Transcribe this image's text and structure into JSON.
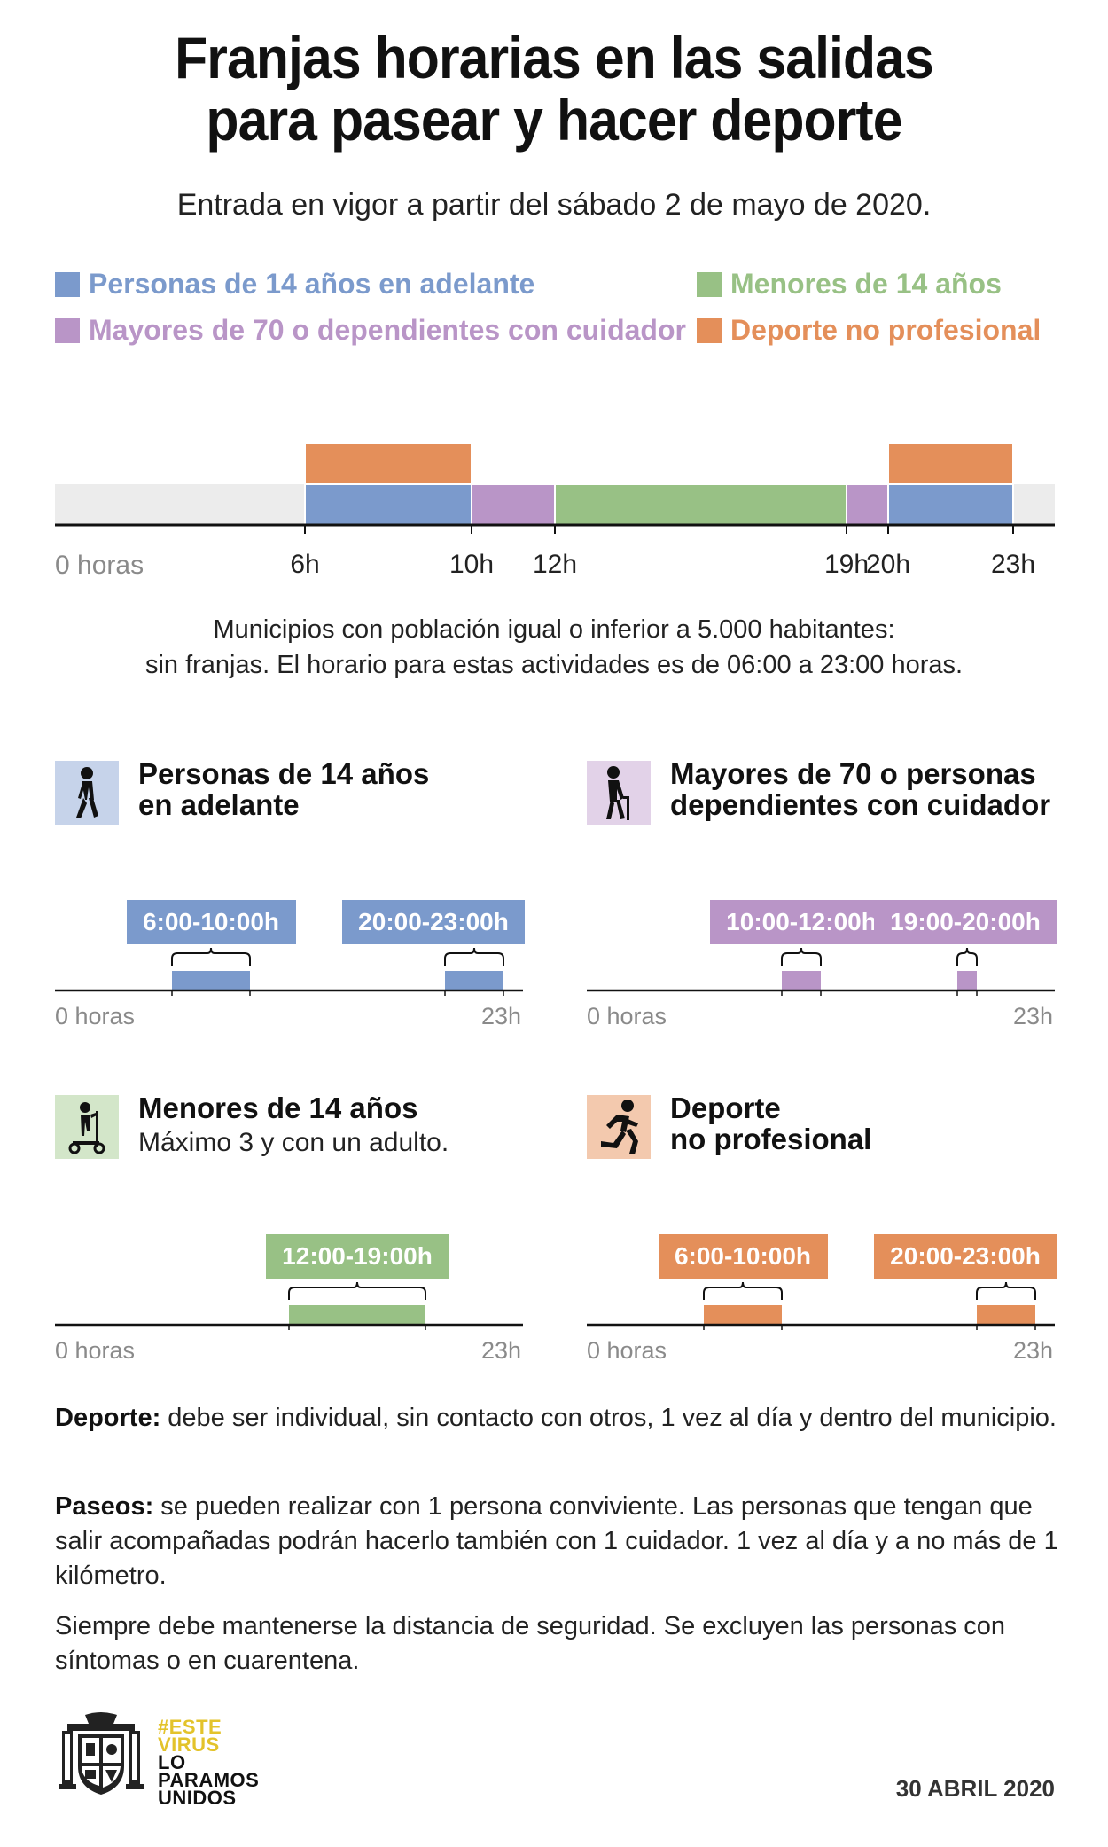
{
  "title": {
    "line1": "Franjas horarias en las salidas",
    "line2": "para pasear y hacer deporte"
  },
  "subtitle": "Entrada en vigor a partir del sábado 2 de mayo de 2020.",
  "colors": {
    "blue": "#7b9acc",
    "purple": "#b995c7",
    "green": "#98c185",
    "orange": "#e48f5a",
    "track": "#ececec"
  },
  "legend": [
    {
      "label": "Personas de 14 años en adelante",
      "color": "#7b9acc"
    },
    {
      "label": "Menores de 14 años",
      "color": "#98c185"
    },
    {
      "label": "Mayores de 70 o dependientes con cuidador",
      "color": "#b995c7"
    },
    {
      "label": "Deporte no profesional",
      "color": "#e48f5a"
    }
  ],
  "chart_data": {
    "type": "timeline",
    "x_range": [
      0,
      24
    ],
    "x_start_label": "0 horas",
    "ticks": [
      {
        "h": 6,
        "label": "6h"
      },
      {
        "h": 10,
        "label": "10h"
      },
      {
        "h": 12,
        "label": "12h"
      },
      {
        "h": 19,
        "label": "19h"
      },
      {
        "h": 20,
        "label": "20h"
      },
      {
        "h": 23,
        "label": "23h"
      }
    ],
    "bars": [
      {
        "start": 6,
        "end": 10,
        "row": "lower",
        "color": "#7b9acc"
      },
      {
        "start": 10,
        "end": 12,
        "row": "lower",
        "color": "#b995c7"
      },
      {
        "start": 12,
        "end": 19,
        "row": "lower",
        "color": "#98c185"
      },
      {
        "start": 19,
        "end": 20,
        "row": "lower",
        "color": "#b995c7"
      },
      {
        "start": 20,
        "end": 23,
        "row": "lower",
        "color": "#7b9acc"
      },
      {
        "start": 6,
        "end": 10,
        "row": "upper",
        "color": "#e48f5a"
      },
      {
        "start": 20,
        "end": 23,
        "row": "upper",
        "color": "#e48f5a"
      }
    ]
  },
  "note": {
    "line1": "Municipios con población igual o inferior a 5.000 habitantes:",
    "line2": "sin franjas. El horario para estas actividades es de 06:00 a 23:00 horas."
  },
  "panels": [
    {
      "title1": "Personas de 14 años",
      "title2": "en adelante",
      "sub": "",
      "color": "#7b9acc",
      "iconBg": "#c6d3ea",
      "icon": "walking-person-icon",
      "axis_start": "0 horas",
      "axis_end": "23h",
      "ranges": [
        {
          "start": 6,
          "end": 10,
          "label": "6:00-10:00h"
        },
        {
          "start": 20,
          "end": 23,
          "label": "20:00-23:00h"
        }
      ]
    },
    {
      "title1": "Mayores de 70 o personas",
      "title2": "dependientes con cuidador",
      "sub": "",
      "color": "#b995c7",
      "iconBg": "#e2d2e8",
      "icon": "elderly-cane-icon",
      "axis_start": "0 horas",
      "axis_end": "23h",
      "ranges": [
        {
          "start": 10,
          "end": 12,
          "label": "10:00-12:00h"
        },
        {
          "start": 19,
          "end": 20,
          "label": "19:00-20:00h"
        }
      ]
    },
    {
      "title1": "Menores de 14 años",
      "title2": "",
      "sub": "Máximo 3 y con un adulto.",
      "color": "#98c185",
      "iconBg": "#d3e6c9",
      "icon": "child-scooter-icon",
      "axis_start": "0 horas",
      "axis_end": "23h",
      "ranges": [
        {
          "start": 12,
          "end": 19,
          "label": "12:00-19:00h"
        }
      ]
    },
    {
      "title1": "Deporte",
      "title2": "no profesional",
      "sub": "",
      "color": "#e48f5a",
      "iconBg": "#f3c9ae",
      "icon": "runner-icon",
      "axis_start": "0 horas",
      "axis_end": "23h",
      "ranges": [
        {
          "start": 6,
          "end": 10,
          "label": "6:00-10:00h"
        },
        {
          "start": 20,
          "end": 23,
          "label": "20:00-23:00h"
        }
      ]
    }
  ],
  "paragraphs": {
    "deporte_label": "Deporte:",
    "deporte_text": " debe ser individual, sin contacto con otros, 1 vez al día y dentro del municipio.",
    "paseos_label": "Paseos:",
    "paseos_text": " se pueden realizar con 1 persona conviviente. Las personas que tengan que salir acompañadas podrán hacerlo también con 1 cuidador. 1 vez al día y a no más de 1 kilómetro.",
    "siempre": "Siempre debe mantenerse la distancia de seguridad. Se excluyen las personas con síntomas o en cuarentena."
  },
  "footer": {
    "logo_lines": [
      "#ESTE",
      "VIRUS",
      "LO",
      "PARAMOS",
      "UNIDOS"
    ],
    "logo_yellow": "#e3c32b",
    "crest_icon": "coat-of-arms-icon",
    "date": "30 ABRIL 2020"
  }
}
